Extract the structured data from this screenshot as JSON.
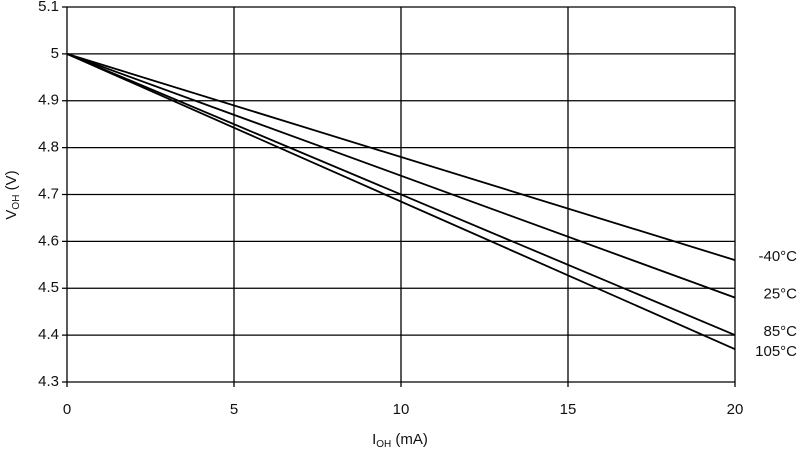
{
  "chart_data": {
    "type": "line",
    "x_label": [
      "I",
      "OH",
      " (mA)"
    ],
    "y_label": [
      "V",
      "OH",
      " (V)"
    ],
    "x": [
      0,
      20
    ],
    "series": [
      {
        "name": "-40°C",
        "color": "#000000",
        "values": [
          5,
          4.56
        ]
      },
      {
        "name": "25°C",
        "color": "#000000",
        "values": [
          5,
          4.48
        ]
      },
      {
        "name": "85°C",
        "color": "#000000",
        "values": [
          5,
          4.4
        ]
      },
      {
        "name": "105°C",
        "color": "#000000",
        "values": [
          5,
          4.37
        ]
      }
    ],
    "xlim": [
      0,
      20
    ],
    "xticks": [
      0,
      5,
      10,
      15,
      20
    ],
    "ylim": [
      4.3,
      5.1
    ],
    "yticks": [
      {
        "value": 4.3,
        "label": "4.3"
      },
      {
        "value": 4.4,
        "label": "4.4"
      },
      {
        "value": 4.5,
        "label": "4.5"
      },
      {
        "value": 4.6,
        "label": "4.6"
      },
      {
        "value": 4.7,
        "label": "4.7"
      },
      {
        "value": 4.8,
        "label": "4.8"
      },
      {
        "value": 4.9,
        "label": "4.9"
      },
      5,
      {
        "value": 5.1,
        "label": "5.1"
      }
    ],
    "grid": true
  }
}
